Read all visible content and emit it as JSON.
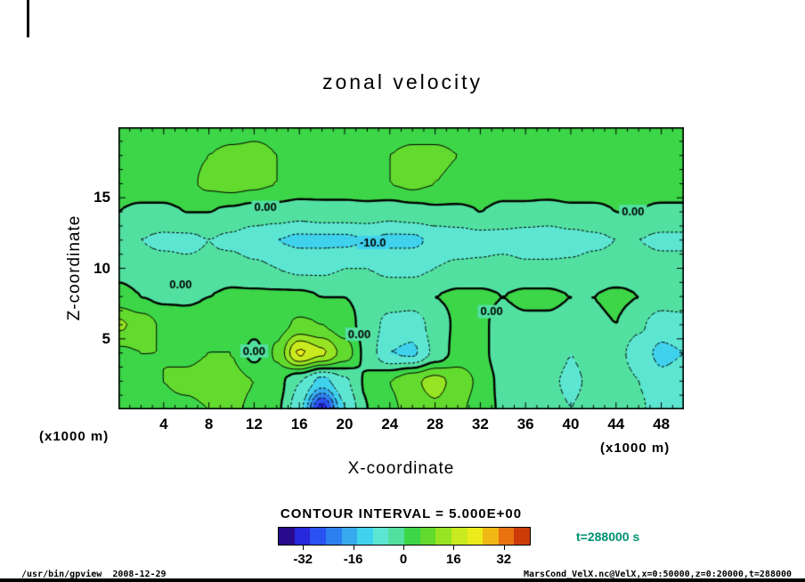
{
  "title": "zonal velocity",
  "axes": {
    "x_label": "X-coordinate",
    "z_label": "Z-coordinate",
    "x_unit": "(x1000 m)",
    "z_unit": "(x1000 m)",
    "x_ticks": [
      4,
      8,
      12,
      16,
      20,
      24,
      28,
      32,
      36,
      40,
      44,
      48
    ],
    "z_ticks": [
      5,
      10,
      15
    ]
  },
  "contour": {
    "interval_label": "CONTOUR INTERVAL = 5.000E+00",
    "interval": 5,
    "labels": [
      {
        "text": "0.00",
        "x": 13,
        "z": 14.3
      },
      {
        "text": "-10.0",
        "x": 22.5,
        "z": 11.8
      },
      {
        "text": "0.00",
        "x": 45.5,
        "z": 14.0
      },
      {
        "text": "0.00",
        "x": 5.5,
        "z": 8.8
      },
      {
        "text": "0.00",
        "x": 33,
        "z": 6.9
      },
      {
        "text": "0.00",
        "x": 21.3,
        "z": 5.3
      },
      {
        "text": "0.00",
        "x": 12,
        "z": 4.1
      }
    ]
  },
  "colorbar": {
    "range": [
      -40,
      40
    ],
    "tick_values": [
      -32,
      -16,
      0,
      16,
      32
    ],
    "tick_labels": [
      "-32",
      "-16",
      "0",
      "16",
      "32"
    ],
    "colors": [
      "#2a0a8c",
      "#2828dc",
      "#2a52f0",
      "#2e80f0",
      "#36aaec",
      "#40d2ec",
      "#5ce6d2",
      "#52e0a0",
      "#3cd648",
      "#62da2e",
      "#96e424",
      "#c8ea1e",
      "#ecec1c",
      "#f0b814",
      "#e87310",
      "#cc3a08"
    ]
  },
  "time_label": "t=288000 s",
  "footer": {
    "left": "/usr/bin/gpview  2008-12-29",
    "right": "MarsCond_VelX.nc@VelX,x=0:50000,z=0:20000,t=288000"
  },
  "chart_data": {
    "type": "heatmap",
    "variant": "filled_contour",
    "title": "zonal velocity",
    "xlabel": "X-coordinate (x1000 m)",
    "ylabel": "Z-coordinate (x1000 m)",
    "x_range": [
      0,
      50
    ],
    "z_range": [
      0,
      20
    ],
    "contour_interval": 5,
    "contour_levels": [
      -30,
      -25,
      -20,
      -15,
      -10,
      -5,
      0,
      5,
      10,
      15,
      20
    ],
    "x": [
      0,
      2,
      4,
      6,
      8,
      10,
      12,
      14,
      16,
      18,
      20,
      22,
      24,
      26,
      28,
      30,
      32,
      34,
      36,
      38,
      40,
      42,
      44,
      46,
      48,
      50
    ],
    "z": [
      0,
      2,
      4,
      6,
      8,
      10,
      12,
      14,
      16,
      18,
      20
    ],
    "values": [
      [
        3,
        3,
        4,
        4,
        5,
        6,
        4,
        1,
        -8,
        -33,
        -10,
        0,
        4,
        7,
        9,
        6,
        3,
        -1,
        -2,
        -3,
        -5,
        -3,
        -2,
        -4,
        -8,
        -9
      ],
      [
        4,
        4,
        5,
        6,
        7,
        7,
        5,
        2,
        -5,
        -12,
        -6,
        1,
        5,
        9,
        12,
        8,
        4,
        -2,
        -3,
        -4,
        -6,
        -4,
        -2,
        -5,
        -9,
        -8
      ],
      [
        4,
        5,
        5,
        4,
        5,
        5,
        -2,
        6,
        21,
        16,
        8,
        -2,
        -10,
        -11,
        -4,
        2,
        2,
        -4,
        -3,
        -2,
        -5,
        -3,
        -3,
        -8,
        -11,
        -10
      ],
      [
        11,
        8,
        4,
        3,
        4,
        4,
        2,
        3,
        6,
        5,
        2,
        -2,
        -7,
        -8,
        -3,
        1,
        1,
        -2,
        -1,
        -1,
        -2,
        -1,
        0,
        -4,
        -8,
        -7
      ],
      [
        2,
        0,
        -1,
        -1,
        0,
        1,
        1,
        1,
        1,
        0,
        0,
        -1,
        -2,
        -2,
        0,
        1,
        1,
        0,
        1,
        1,
        0,
        0,
        1,
        0,
        -2,
        -2
      ],
      [
        -2,
        -3,
        -3,
        -4,
        -4,
        -3,
        -4,
        -5,
        -6,
        -6,
        -5,
        -5,
        -6,
        -6,
        -5,
        -4,
        -4,
        -3,
        -4,
        -4,
        -4,
        -3,
        -3,
        -2,
        -3,
        -3
      ],
      [
        -4,
        -5,
        -6,
        -6,
        -5,
        -6,
        -8,
        -10,
        -11,
        -11,
        -11,
        -10,
        -11,
        -11,
        -9,
        -8,
        -7,
        -7,
        -8,
        -8,
        -7,
        -6,
        -5,
        -5,
        -6,
        -6
      ],
      [
        0,
        -1,
        -1,
        0,
        0,
        -1,
        -2,
        -2,
        -3,
        -2,
        -2,
        -2,
        -3,
        -2,
        -1,
        -1,
        0,
        -1,
        -1,
        -2,
        -1,
        -1,
        0,
        0,
        -1,
        -1
      ],
      [
        2,
        3,
        3,
        4,
        6,
        7,
        6,
        5,
        4,
        3,
        3,
        4,
        5,
        6,
        5,
        4,
        3,
        2,
        2,
        3,
        3,
        3,
        2,
        2,
        3,
        3
      ],
      [
        2,
        2,
        3,
        4,
        5,
        6,
        6,
        5,
        4,
        3,
        3,
        4,
        5,
        6,
        6,
        5,
        3,
        3,
        2,
        3,
        4,
        3,
        3,
        2,
        2,
        2
      ],
      [
        2,
        2,
        2,
        3,
        3,
        3,
        4,
        4,
        3,
        2,
        2,
        3,
        3,
        3,
        3,
        3,
        2,
        2,
        2,
        2,
        3,
        3,
        2,
        2,
        2,
        2
      ]
    ],
    "colorbar_range": [
      -40,
      40
    ],
    "colorbar_ticks": [
      -32,
      -16,
      0,
      16,
      32
    ],
    "legend_position": "bottom",
    "grid": false
  }
}
